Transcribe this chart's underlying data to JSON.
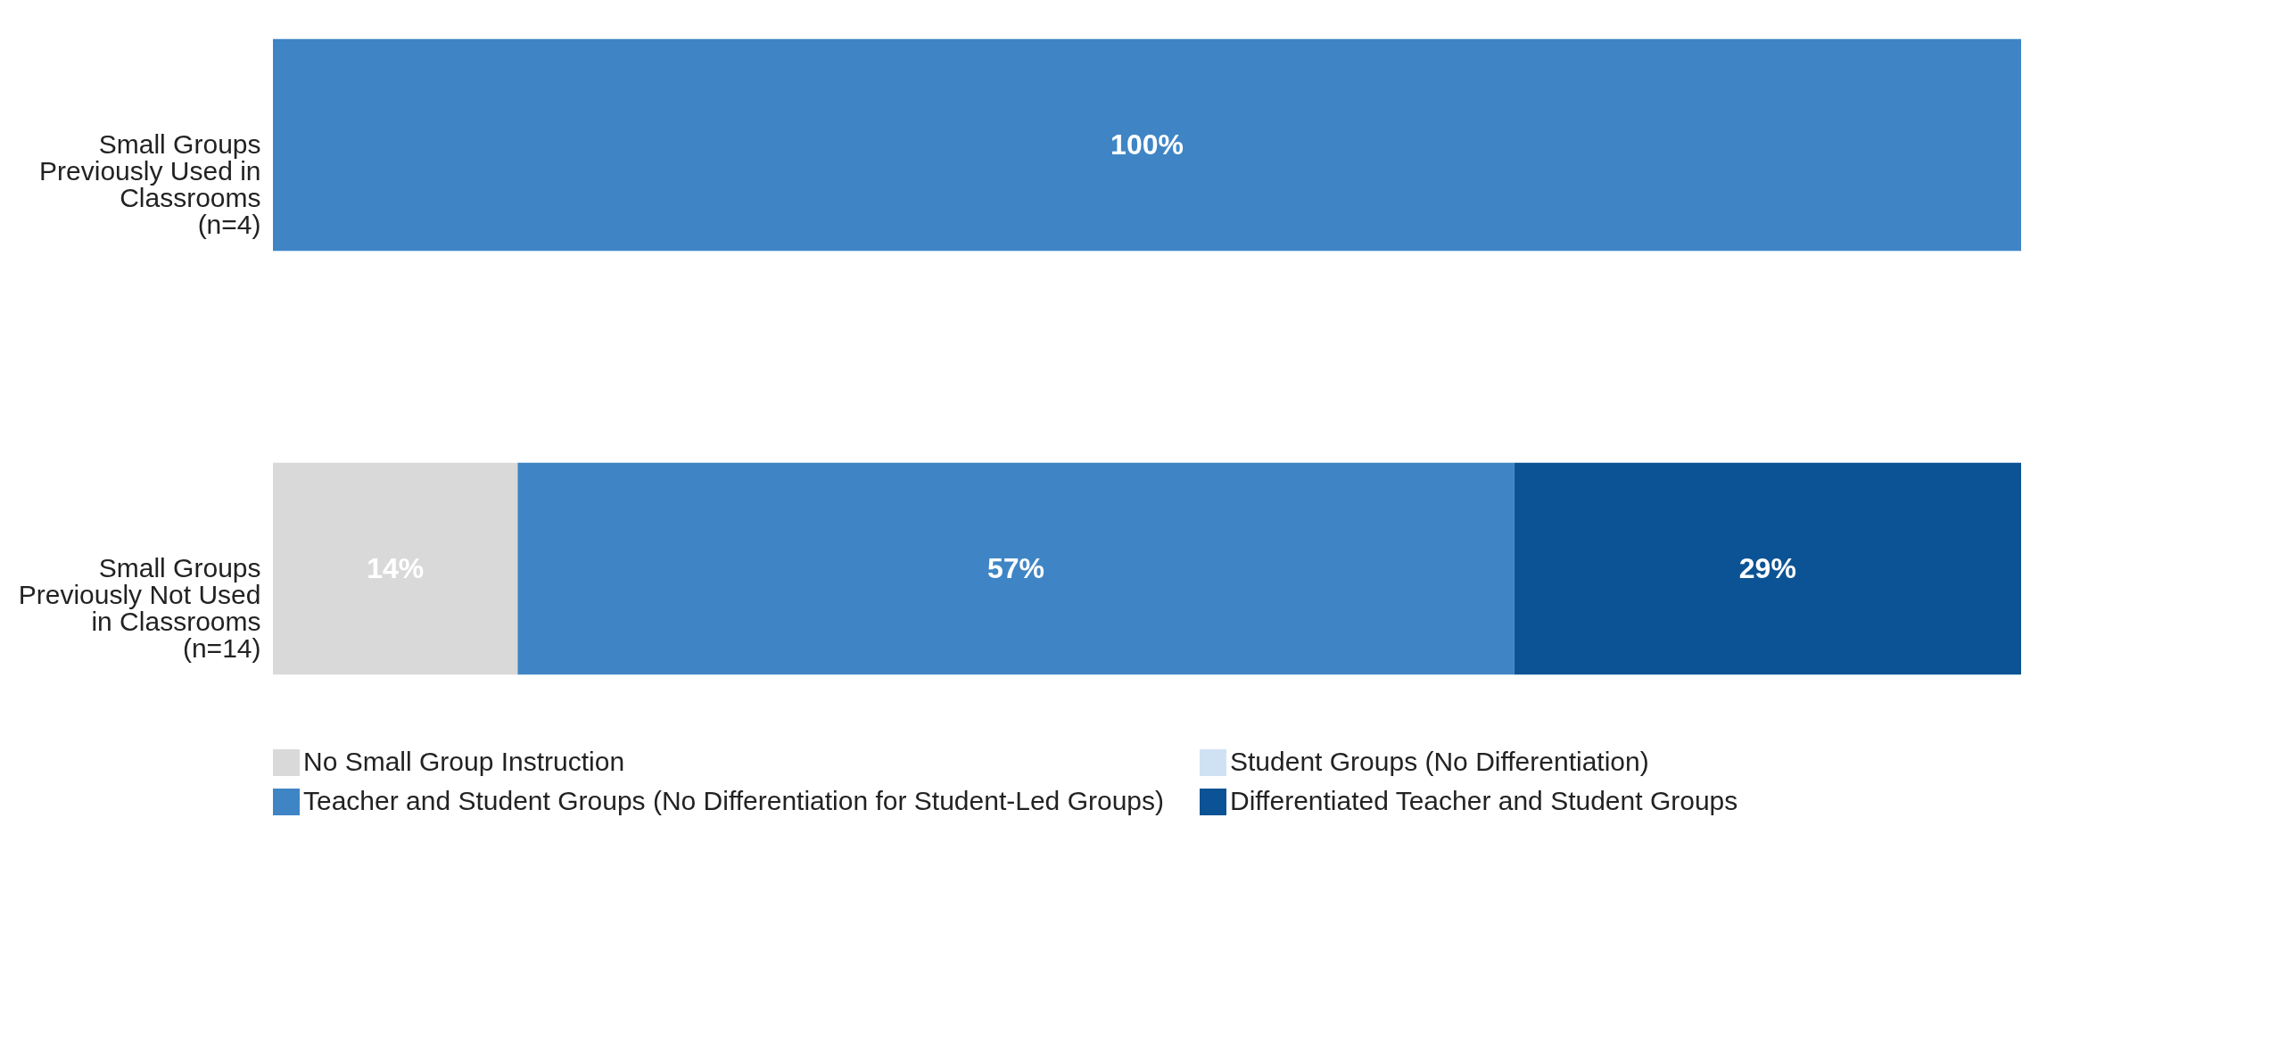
{
  "chart_data": {
    "type": "bar",
    "orientation": "horizontal",
    "stacked": true,
    "categories": [
      "Small Groups Previously Used in Classrooms (n=4)",
      "Small Groups Previously Not Used in Classrooms (n=14)"
    ],
    "series": [
      {
        "name": "No Small Group Instruction",
        "color": "#d9d9d9",
        "values": [
          0,
          14
        ],
        "value_labels": [
          null,
          "14%"
        ]
      },
      {
        "name": "Student Groups (No Differentiation)",
        "color": "#cfe2f3",
        "values": [
          0,
          0
        ],
        "value_labels": [
          null,
          null
        ]
      },
      {
        "name": "Teacher and Student Groups (No Differentiation for Student-Led Groups)",
        "color": "#3f85c6",
        "values": [
          100,
          57
        ],
        "value_labels": [
          "100%",
          "57%"
        ]
      },
      {
        "name": "Differentiated Teacher and Student Groups",
        "color": "#0b5394",
        "values": [
          0,
          29
        ],
        "value_labels": [
          null,
          "29%"
        ]
      }
    ],
    "legend": "bottom",
    "grid": false
  }
}
